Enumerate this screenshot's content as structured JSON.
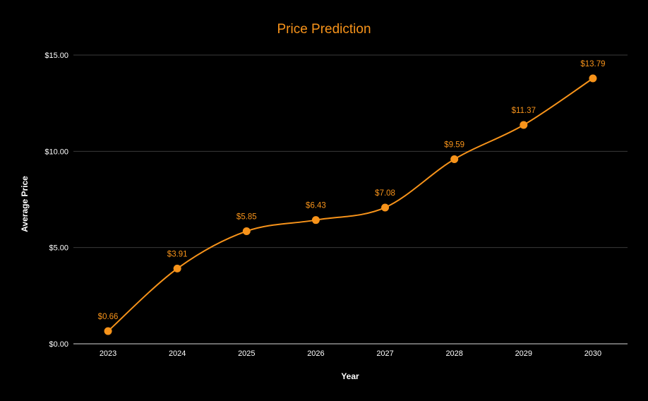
{
  "chart_data": {
    "type": "line",
    "title": "Price Prediction",
    "xlabel": "Year",
    "ylabel": "Average Price",
    "categories": [
      "2023",
      "2024",
      "2025",
      "2026",
      "2027",
      "2028",
      "2029",
      "2030"
    ],
    "series": [
      {
        "values": [
          0.66,
          3.91,
          5.85,
          6.43,
          7.08,
          9.59,
          11.37,
          13.79
        ],
        "data_labels": [
          "$0.66",
          "$3.91",
          "$5.85",
          "$6.43",
          "$7.08",
          "$9.59",
          "$11.37",
          "$13.79"
        ],
        "color": "#f7931a"
      }
    ],
    "ylim": [
      0,
      15
    ],
    "y_ticks": [
      0,
      5,
      10,
      15
    ],
    "y_tick_labels": [
      "$0.00",
      "$5.00",
      "$10.00",
      "$15.00"
    ],
    "grid": true,
    "legend": "none",
    "smooth": true,
    "colors": {
      "background": "#000000",
      "accent": "#f7931a",
      "text": "#ffffff",
      "grid": "#3a3a3a",
      "axis": "#d9d9d9"
    }
  }
}
